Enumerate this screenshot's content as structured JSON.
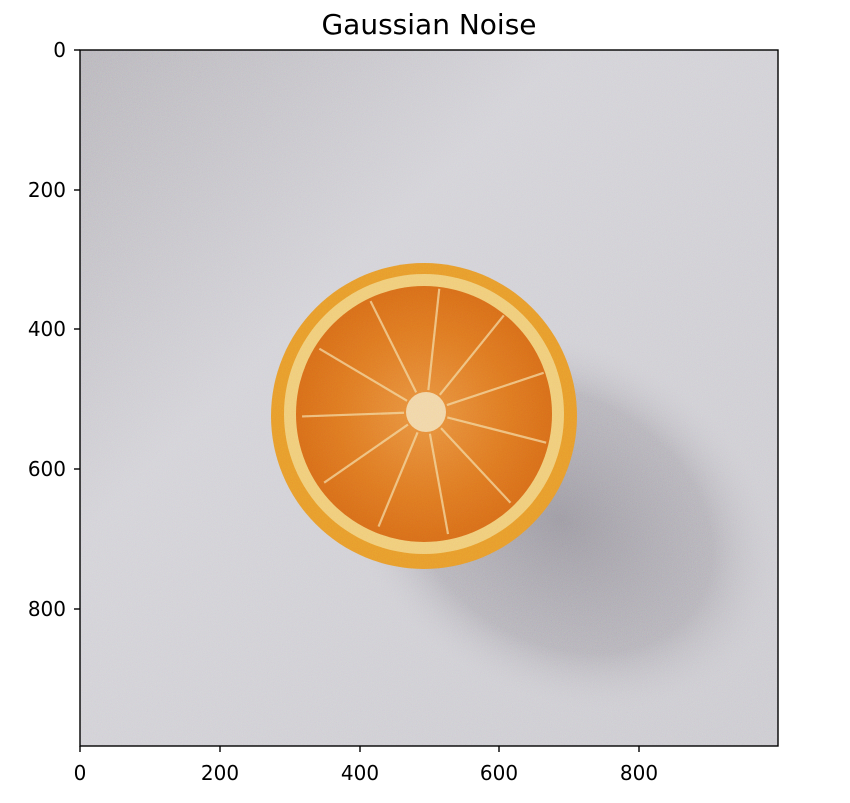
{
  "figure": {
    "title": "Gaussian Noise"
  },
  "image": {
    "subject": "half orange on a light gray surface with gaussian noise",
    "extent": {
      "x": [
        0,
        1000
      ],
      "y": [
        0,
        1000
      ]
    },
    "colors": {
      "background": "#c9c7cc",
      "background_light": "#d6d5da",
      "shadow": "#a9a6ad",
      "rind": "#e8a12f",
      "pith": "#f0d28a",
      "flesh": "#e07d22",
      "flesh_dark": "#c9691a",
      "segment_line": "#f3d9a6",
      "center": "#f5e6c8"
    }
  },
  "axes": {
    "x_ticks": [
      "0",
      "200",
      "400",
      "600",
      "800"
    ],
    "x_tick_values": [
      0,
      200,
      400,
      600,
      800
    ],
    "y_ticks": [
      "0",
      "200",
      "400",
      "600",
      "800"
    ],
    "y_tick_values": [
      0,
      200,
      400,
      600,
      800
    ]
  }
}
